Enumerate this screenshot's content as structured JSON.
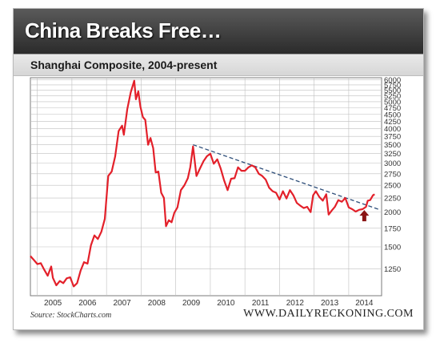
{
  "header": {
    "headline": "China Breaks Free…",
    "subtitle": "Shanghai Composite, 2004-present"
  },
  "footer": {
    "source": "Source: StockCharts.com",
    "site": "WWW.DAILYRECKONING.COM"
  },
  "colors": {
    "line": "#e3202a",
    "trendline": "#2f4f7a",
    "arrow": "#8a1414",
    "grid": "#bfbfbf"
  },
  "chart_data": {
    "type": "line",
    "title": "Shanghai Composite, 2004-present",
    "xlabel": "",
    "ylabel": "",
    "scale": "log",
    "xlim": [
      2004.8,
      2014.95
    ],
    "ylim": [
      1000,
      6100
    ],
    "grid": true,
    "x_ticks": [
      "2005",
      "2006",
      "2007",
      "2008",
      "2009",
      "2010",
      "2011",
      "2012",
      "2013",
      "2014"
    ],
    "y_ticks": [
      1250,
      1500,
      1750,
      2000,
      2250,
      2500,
      2750,
      3000,
      3250,
      3500,
      3750,
      4000,
      4250,
      4500,
      4750,
      5000,
      5250,
      5500,
      5750,
      6000
    ],
    "series": [
      {
        "values": [
          [
            2004.8,
            1390
          ],
          [
            2004.9,
            1345
          ],
          [
            2005.0,
            1300
          ],
          [
            2005.1,
            1310
          ],
          [
            2005.2,
            1240
          ],
          [
            2005.3,
            1180
          ],
          [
            2005.4,
            1275
          ],
          [
            2005.45,
            1160
          ],
          [
            2005.55,
            1090
          ],
          [
            2005.65,
            1130
          ],
          [
            2005.75,
            1110
          ],
          [
            2005.85,
            1155
          ],
          [
            2005.95,
            1165
          ],
          [
            2006.05,
            1080
          ],
          [
            2006.15,
            1110
          ],
          [
            2006.25,
            1230
          ],
          [
            2006.35,
            1320
          ],
          [
            2006.45,
            1305
          ],
          [
            2006.55,
            1520
          ],
          [
            2006.65,
            1650
          ],
          [
            2006.75,
            1600
          ],
          [
            2006.85,
            1700
          ],
          [
            2006.95,
            1890
          ],
          [
            2007.05,
            2700
          ],
          [
            2007.15,
            2800
          ],
          [
            2007.25,
            3180
          ],
          [
            2007.35,
            3920
          ],
          [
            2007.45,
            4100
          ],
          [
            2007.5,
            3800
          ],
          [
            2007.6,
            4700
          ],
          [
            2007.7,
            5400
          ],
          [
            2007.8,
            5950
          ],
          [
            2007.85,
            5100
          ],
          [
            2007.92,
            5450
          ],
          [
            2007.98,
            4800
          ],
          [
            2008.05,
            4400
          ],
          [
            2008.12,
            4300
          ],
          [
            2008.2,
            3500
          ],
          [
            2008.27,
            3700
          ],
          [
            2008.35,
            3400
          ],
          [
            2008.42,
            2780
          ],
          [
            2008.5,
            2800
          ],
          [
            2008.58,
            2350
          ],
          [
            2008.66,
            2250
          ],
          [
            2008.72,
            1780
          ],
          [
            2008.8,
            1870
          ],
          [
            2008.88,
            1840
          ],
          [
            2008.96,
            1990
          ],
          [
            2009.05,
            2080
          ],
          [
            2009.15,
            2400
          ],
          [
            2009.25,
            2500
          ],
          [
            2009.35,
            2650
          ],
          [
            2009.42,
            2900
          ],
          [
            2009.5,
            3450
          ],
          [
            2009.6,
            2700
          ],
          [
            2009.7,
            2870
          ],
          [
            2009.8,
            3050
          ],
          [
            2009.9,
            3180
          ],
          [
            2010.0,
            3250
          ],
          [
            2010.1,
            2990
          ],
          [
            2010.2,
            3100
          ],
          [
            2010.3,
            2870
          ],
          [
            2010.4,
            2600
          ],
          [
            2010.5,
            2400
          ],
          [
            2010.6,
            2640
          ],
          [
            2010.7,
            2650
          ],
          [
            2010.8,
            2900
          ],
          [
            2010.9,
            2820
          ],
          [
            2011.0,
            2820
          ],
          [
            2011.1,
            2900
          ],
          [
            2011.2,
            2950
          ],
          [
            2011.3,
            2900
          ],
          [
            2011.4,
            2750
          ],
          [
            2011.5,
            2700
          ],
          [
            2011.6,
            2620
          ],
          [
            2011.7,
            2450
          ],
          [
            2011.8,
            2380
          ],
          [
            2011.9,
            2350
          ],
          [
            2012.0,
            2220
          ],
          [
            2012.1,
            2380
          ],
          [
            2012.2,
            2240
          ],
          [
            2012.3,
            2400
          ],
          [
            2012.4,
            2300
          ],
          [
            2012.5,
            2160
          ],
          [
            2012.6,
            2110
          ],
          [
            2012.7,
            2070
          ],
          [
            2012.8,
            2090
          ],
          [
            2012.9,
            2000
          ],
          [
            2012.97,
            2300
          ],
          [
            2013.05,
            2380
          ],
          [
            2013.15,
            2270
          ],
          [
            2013.25,
            2200
          ],
          [
            2013.35,
            2320
          ],
          [
            2013.42,
            1960
          ],
          [
            2013.5,
            2020
          ],
          [
            2013.6,
            2090
          ],
          [
            2013.7,
            2210
          ],
          [
            2013.8,
            2180
          ],
          [
            2013.9,
            2250
          ],
          [
            2014.0,
            2080
          ],
          [
            2014.1,
            2050
          ],
          [
            2014.2,
            2010
          ],
          [
            2014.3,
            2040
          ],
          [
            2014.4,
            2050
          ],
          [
            2014.5,
            2090
          ],
          [
            2014.55,
            2200
          ],
          [
            2014.62,
            2210
          ],
          [
            2014.7,
            2300
          ],
          [
            2014.75,
            2320
          ]
        ]
      }
    ],
    "trendline": [
      [
        2009.5,
        3500
      ],
      [
        2014.85,
        2050
      ]
    ],
    "annotations": [
      {
        "type": "arrow-up",
        "x": 2014.45,
        "y": 1930
      }
    ]
  }
}
